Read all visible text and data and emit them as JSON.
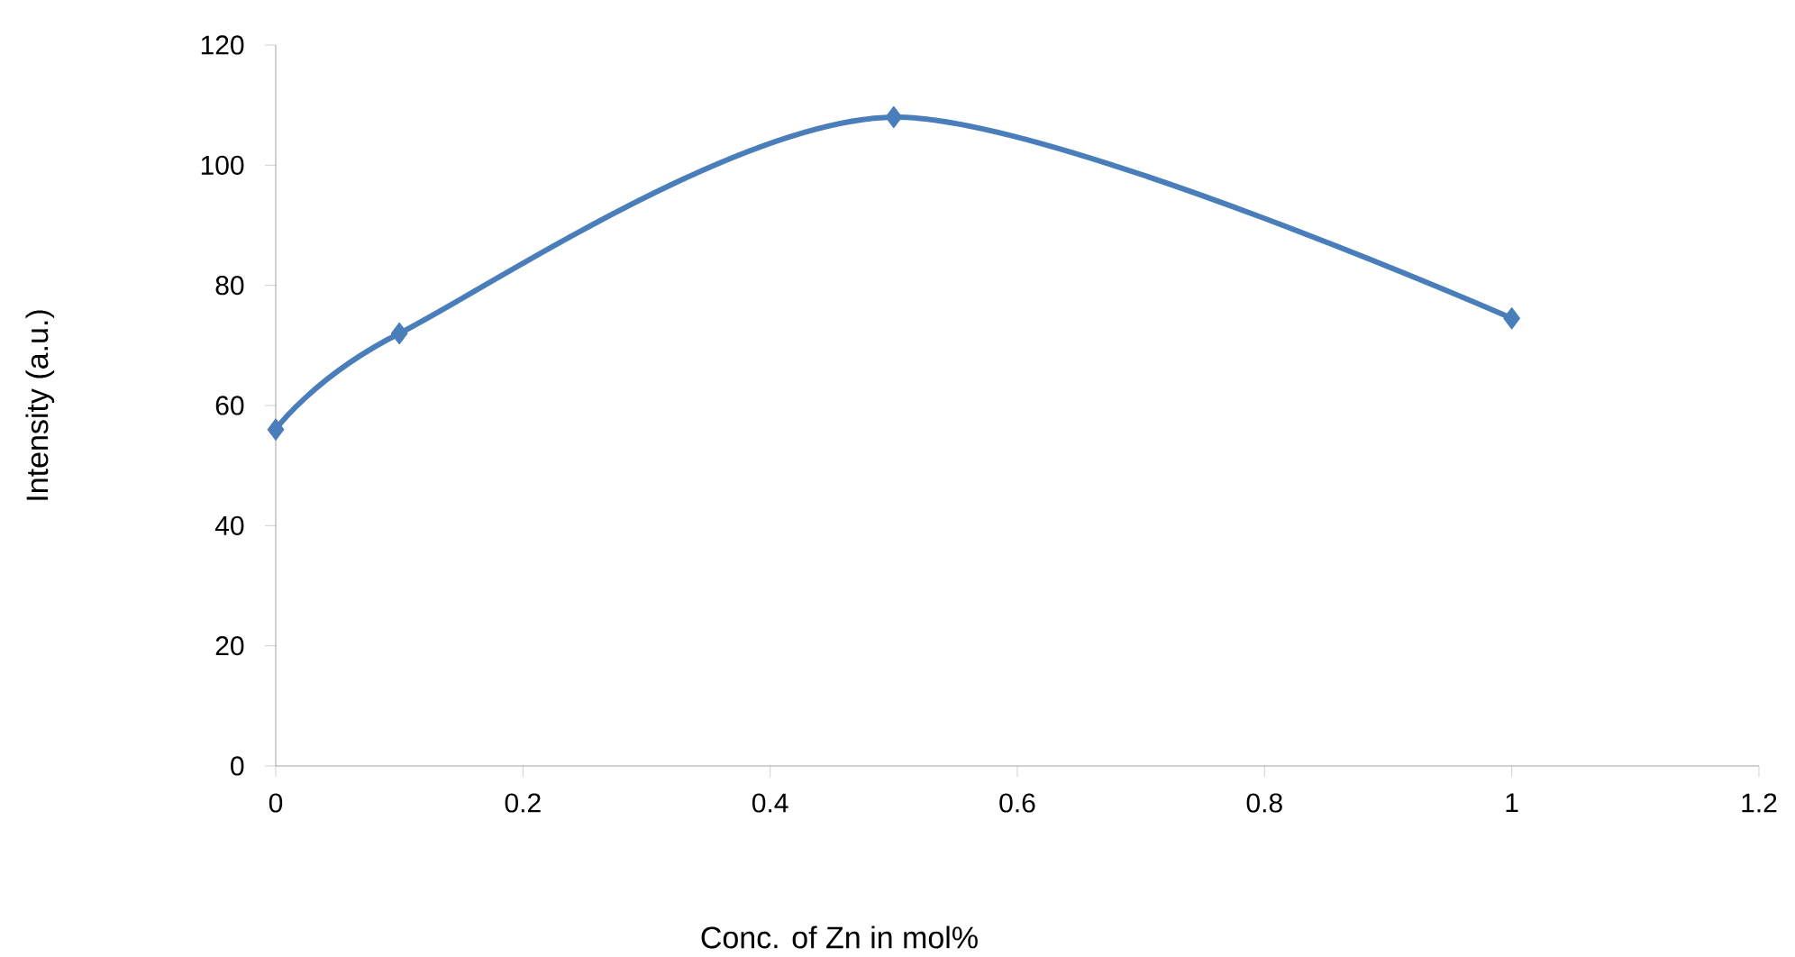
{
  "chart_data": {
    "type": "line",
    "xlabel": "Conc. of Zn in mol%",
    "ylabel": "Intensity (a.u.)",
    "x": [
      0,
      0.1,
      0.5,
      1
    ],
    "series": [
      {
        "color": "#4a7ebb",
        "values": [
          56,
          72,
          108,
          74.5
        ]
      }
    ],
    "xlim": [
      0,
      1.2
    ],
    "xticks": [
      0,
      0.2,
      0.4,
      0.6,
      0.8,
      1,
      1.2
    ],
    "ylim": [
      0,
      120
    ],
    "yticks": [
      0,
      20,
      40,
      60,
      80,
      100,
      120
    ],
    "grid": false,
    "marker": "diamond",
    "line_style": "solid"
  }
}
